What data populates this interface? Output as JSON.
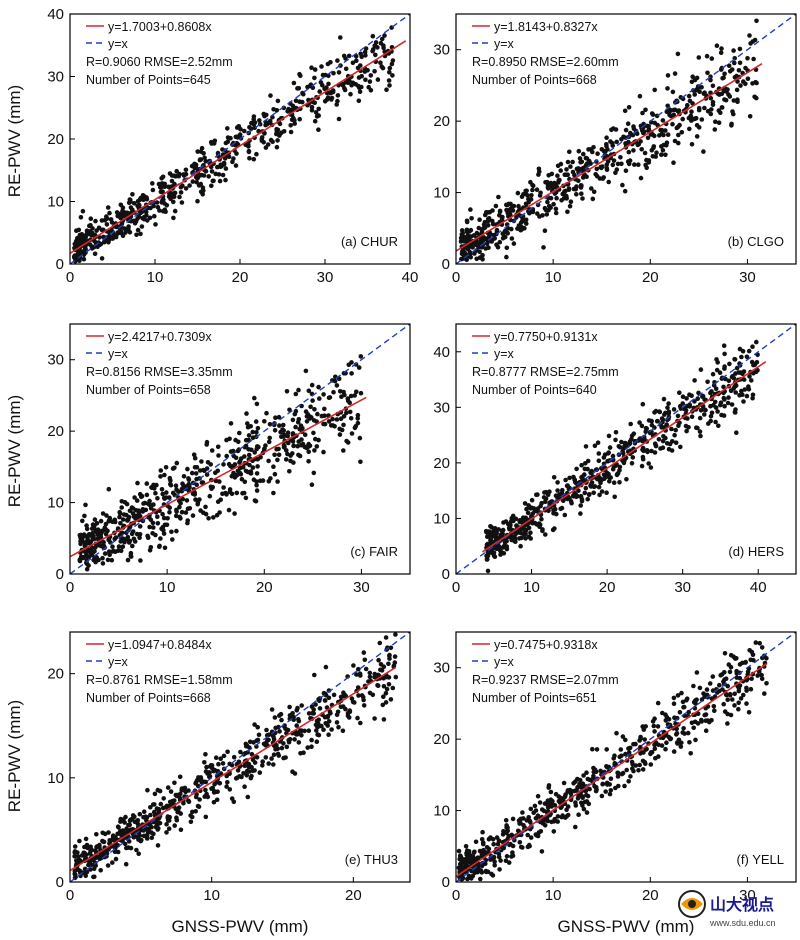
{
  "ylabel": "RE-PWV (mm)",
  "xlabel": "GNSS-PWV (mm)",
  "watermark": {
    "text": "山大视点",
    "url": "www.sdu.edu.cn"
  },
  "colors": {
    "fit": "#d62728",
    "identity": "#1f3fbf",
    "points": "#111111",
    "axis": "#000000"
  },
  "chart_data": [
    {
      "type": "scatter",
      "panel": "(a) CHUR",
      "xlim": [
        0,
        40
      ],
      "ylim": [
        0,
        40
      ],
      "xticks": [
        0,
        10,
        20,
        30,
        40
      ],
      "yticks": [
        0,
        10,
        20,
        30,
        40
      ],
      "legend_fit": "y=1.7003+0.8608x",
      "legend_identity": "y=x",
      "stats": "R=0.9060  RMSE=2.52mm",
      "points_label": "Number of Points=645",
      "fit": {
        "intercept": 1.7003,
        "slope": 0.8608,
        "x_range": [
          0,
          39.5
        ]
      },
      "cloud": {
        "n": 645,
        "x_range": [
          0.5,
          38
        ],
        "spread": 2.5,
        "seed": 11
      }
    },
    {
      "type": "scatter",
      "panel": "(b) CLGO",
      "xlim": [
        0,
        35
      ],
      "ylim": [
        0,
        35
      ],
      "xticks": [
        0,
        10,
        20,
        30
      ],
      "yticks": [
        0,
        10,
        20,
        30
      ],
      "legend_fit": "y=1.8143+0.8327x",
      "legend_identity": "y=x",
      "stats": "R=0.8950  RMSE=2.60mm",
      "points_label": "Number of Points=668",
      "fit": {
        "intercept": 1.8143,
        "slope": 0.8327,
        "x_range": [
          0,
          31.5
        ]
      },
      "cloud": {
        "n": 668,
        "x_range": [
          0.5,
          31
        ],
        "spread": 2.6,
        "seed": 23
      }
    },
    {
      "type": "scatter",
      "panel": "(c) FAIR",
      "xlim": [
        0,
        35
      ],
      "ylim": [
        0,
        35
      ],
      "xticks": [
        0,
        10,
        20,
        30
      ],
      "yticks": [
        0,
        10,
        20,
        30
      ],
      "legend_fit": "y=2.4217+0.7309x",
      "legend_identity": "y=x",
      "stats": "R=0.8156  RMSE=3.35mm",
      "points_label": "Number of Points=658",
      "fit": {
        "intercept": 2.4217,
        "slope": 0.7309,
        "x_range": [
          0,
          30.5
        ]
      },
      "cloud": {
        "n": 658,
        "x_range": [
          1,
          30
        ],
        "spread": 3.3,
        "seed": 37
      }
    },
    {
      "type": "scatter",
      "panel": "(d) HERS",
      "xlim": [
        0,
        45
      ],
      "ylim": [
        0,
        45
      ],
      "xticks": [
        0,
        10,
        20,
        30,
        40
      ],
      "yticks": [
        0,
        10,
        20,
        30,
        40
      ],
      "legend_fit": "y=0.7750+0.9131x",
      "legend_identity": "y=x",
      "stats": "R=0.8777  RMSE=2.75mm",
      "points_label": "Number of Points=640",
      "fit": {
        "intercept": 0.775,
        "slope": 0.9131,
        "x_range": [
          3.5,
          41
        ]
      },
      "cloud": {
        "n": 640,
        "x_range": [
          4,
          40
        ],
        "spread": 2.7,
        "seed": 41
      }
    },
    {
      "type": "scatter",
      "panel": "(e) THU3",
      "xlim": [
        0,
        24
      ],
      "ylim": [
        0,
        24
      ],
      "xticks": [
        0,
        10,
        20
      ],
      "yticks": [
        0,
        10,
        20
      ],
      "legend_fit": "y=1.0947+0.8484x",
      "legend_identity": "y=x",
      "stats": "R=0.8761  RMSE=1.58mm",
      "points_label": "Number of Points=668",
      "fit": {
        "intercept": 1.0947,
        "slope": 0.8484,
        "x_range": [
          0,
          23
        ]
      },
      "cloud": {
        "n": 668,
        "x_range": [
          0.3,
          23
        ],
        "spread": 1.55,
        "seed": 53
      }
    },
    {
      "type": "scatter",
      "panel": "(f) YELL",
      "xlim": [
        0,
        35
      ],
      "ylim": [
        0,
        35
      ],
      "xticks": [
        0,
        10,
        20,
        30
      ],
      "yticks": [
        0,
        10,
        20,
        30
      ],
      "legend_fit": "y=0.7475+0.9318x",
      "legend_identity": "y=x",
      "stats": "R=0.9237  RMSE=2.07mm",
      "points_label": "Number of Points=651",
      "fit": {
        "intercept": 0.7475,
        "slope": 0.9318,
        "x_range": [
          0,
          32
        ]
      },
      "cloud": {
        "n": 651,
        "x_range": [
          0.3,
          32
        ],
        "spread": 2.05,
        "seed": 67
      }
    }
  ]
}
